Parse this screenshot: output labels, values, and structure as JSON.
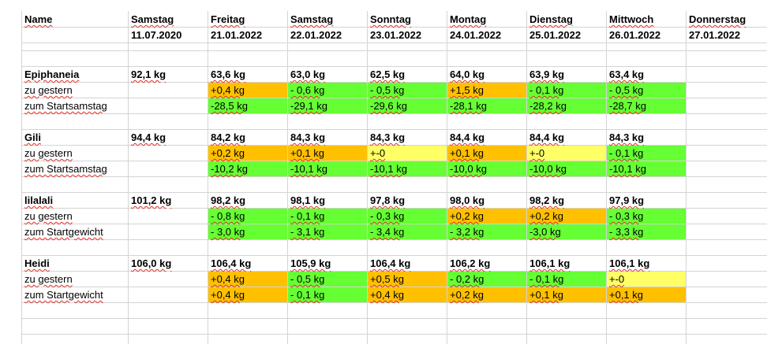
{
  "sheet": {
    "headers": {
      "name": "Name",
      "days": [
        "Samstag",
        "Freitag",
        "Samstag",
        "Sonntag",
        "Montag",
        "Dienstag",
        "Mittwoch",
        "Donnerstag"
      ],
      "dates": [
        "11.07.2020",
        "21.01.2022",
        "22.01.2022",
        "23.01.2022",
        "24.01.2022",
        "25.01.2022",
        "26.01.2022",
        "27.01.2022"
      ]
    },
    "colors": {
      "orange": "#ffc000",
      "green": "#66ff33",
      "yellow": "#ffff66",
      "gridline": "#d4d4d4"
    },
    "groups": [
      {
        "name": "Epiphaneia",
        "start": "92,1 kg",
        "weights": [
          "63,6 kg",
          "63,0 kg",
          "62,5 kg",
          "64,0 kg",
          "63,9 kg",
          "63,4 kg"
        ],
        "diff_label": "zu gestern",
        "diffs": [
          {
            "text": "+0,4 kg",
            "color": "orange"
          },
          {
            "text": "- 0,6 kg",
            "color": "green"
          },
          {
            "text": "- 0,5 kg",
            "color": "green"
          },
          {
            "text": "+1,5 kg",
            "color": "orange"
          },
          {
            "text": "- 0,1 kg",
            "color": "green"
          },
          {
            "text": "- 0,5 kg",
            "color": "green"
          }
        ],
        "total_label": "zum Startsamstag",
        "totals": [
          {
            "text": "-28,5 kg",
            "color": "green"
          },
          {
            "text": "-29,1 kg",
            "color": "green"
          },
          {
            "text": "-29,6 kg",
            "color": "green"
          },
          {
            "text": "-28,1 kg",
            "color": "green"
          },
          {
            "text": "-28,2 kg",
            "color": "green"
          },
          {
            "text": "-28,7 kg",
            "color": "green"
          }
        ]
      },
      {
        "name": "Gili",
        "start": "94,4 kg",
        "weights": [
          "84,2 kg",
          "84,3 kg",
          "84,3 kg",
          "84,4 kg",
          "84,4 kg",
          "84,3 kg"
        ],
        "diff_label": "zu gestern",
        "diffs": [
          {
            "text": "+0,2 kg",
            "color": "orange"
          },
          {
            "text": "+0,1 kg",
            "color": "orange"
          },
          {
            "text": "+-0",
            "color": "yellow"
          },
          {
            "text": "+0,1 kg",
            "color": "orange"
          },
          {
            "text": "+-0",
            "color": "yellow"
          },
          {
            "text": "- 0,1 kg",
            "color": "green"
          }
        ],
        "total_label": "zum Startsamstag",
        "totals": [
          {
            "text": "-10,2 kg",
            "color": "green"
          },
          {
            "text": "-10,1 kg",
            "color": "green"
          },
          {
            "text": "-10,1 kg",
            "color": "green"
          },
          {
            "text": "-10,0 kg",
            "color": "green"
          },
          {
            "text": "-10,0 kg",
            "color": "green"
          },
          {
            "text": "-10,1 kg",
            "color": "green"
          }
        ]
      },
      {
        "name": "lilalali",
        "start": "101,2 kg",
        "weights": [
          "98,2 kg",
          "98,1 kg",
          "97,8 kg",
          "98,0 kg",
          "98,2 kg",
          "97,9 kg"
        ],
        "diff_label": "zu gestern",
        "diffs": [
          {
            "text": "- 0,8 kg",
            "color": "green"
          },
          {
            "text": "- 0,1 kg",
            "color": "green"
          },
          {
            "text": "- 0,3 kg",
            "color": "green"
          },
          {
            "text": "+0,2 kg",
            "color": "orange"
          },
          {
            "text": "+0,2 kg",
            "color": "orange"
          },
          {
            "text": "- 0,3 kg",
            "color": "green"
          }
        ],
        "total_label": "zum Startgewicht",
        "totals": [
          {
            "text": "- 3,0 kg",
            "color": "green"
          },
          {
            "text": "- 3,1 kg",
            "color": "green"
          },
          {
            "text": "- 3,4 kg",
            "color": "green"
          },
          {
            "text": "- 3,2 kg",
            "color": "green"
          },
          {
            "text": "-3,0 kg",
            "color": "green"
          },
          {
            "text": "- 3,3 kg",
            "color": "green"
          }
        ]
      },
      {
        "name": "Heidi",
        "start": "106,0 kg",
        "weights": [
          "106,4 kg",
          "105,9 kg",
          "106,4 kg",
          "106,2 kg",
          "106,1 kg",
          "106,1 kg"
        ],
        "diff_label": "zu gestern",
        "diffs": [
          {
            "text": "+0,4 kg",
            "color": "orange"
          },
          {
            "text": "- 0,5 kg",
            "color": "green"
          },
          {
            "text": "+0,5 kg",
            "color": "orange"
          },
          {
            "text": "- 0,2 kg",
            "color": "green"
          },
          {
            "text": "- 0,1 kg",
            "color": "green"
          },
          {
            "text": "+-0",
            "color": "yellow"
          }
        ],
        "total_label": "zum Startgewicht",
        "totals": [
          {
            "text": "+0,4 kg",
            "color": "orange"
          },
          {
            "text": "- 0,1 kg",
            "color": "green"
          },
          {
            "text": "+0,4 kg",
            "color": "orange"
          },
          {
            "text": "+0,2 kg",
            "color": "orange"
          },
          {
            "text": "+0,1 kg",
            "color": "orange"
          },
          {
            "text": "+0,1 kg",
            "color": "orange"
          }
        ]
      }
    ]
  }
}
